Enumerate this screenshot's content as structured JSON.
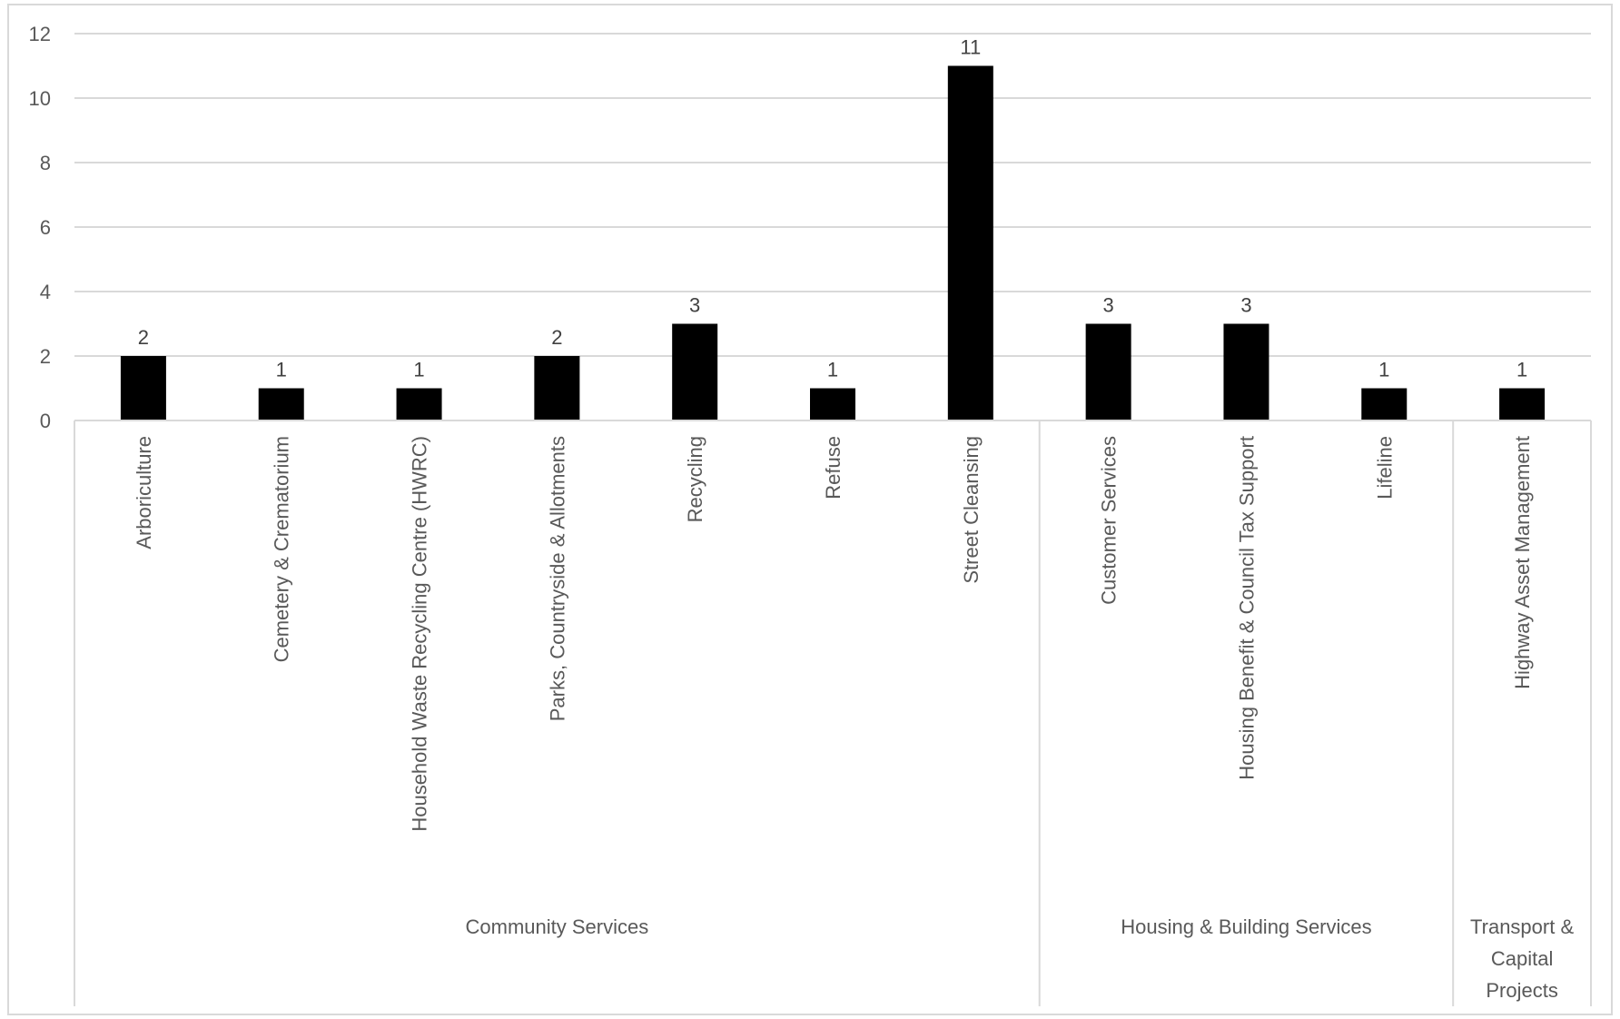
{
  "chart_data": {
    "type": "bar",
    "title": "",
    "xlabel": "",
    "ylabel": "",
    "ylim": [
      0,
      12
    ],
    "yticks": [
      0,
      2,
      4,
      6,
      8,
      10,
      12
    ],
    "grid": true,
    "legend": "none",
    "bar_color": "#000000",
    "categories": [
      "Arboriculture",
      "Cemetery & Crematorium",
      "Household Waste Recycling Centre (HWRC)",
      "Parks, Countryside & Allotments",
      "Recycling",
      "Refuse",
      "Street Cleansing",
      "Customer Services",
      "Housing Benefit & Council Tax Support",
      "Lifeline",
      "Highway Asset Management"
    ],
    "values": [
      2,
      1,
      1,
      2,
      3,
      1,
      11,
      3,
      3,
      1,
      1
    ],
    "groups": [
      {
        "label_lines": [
          "Community Services"
        ],
        "count": 7
      },
      {
        "label_lines": [
          "Housing & Building Services"
        ],
        "count": 3
      },
      {
        "label_lines": [
          "Transport &",
          "Capital",
          "Projects"
        ],
        "count": 1
      }
    ]
  }
}
